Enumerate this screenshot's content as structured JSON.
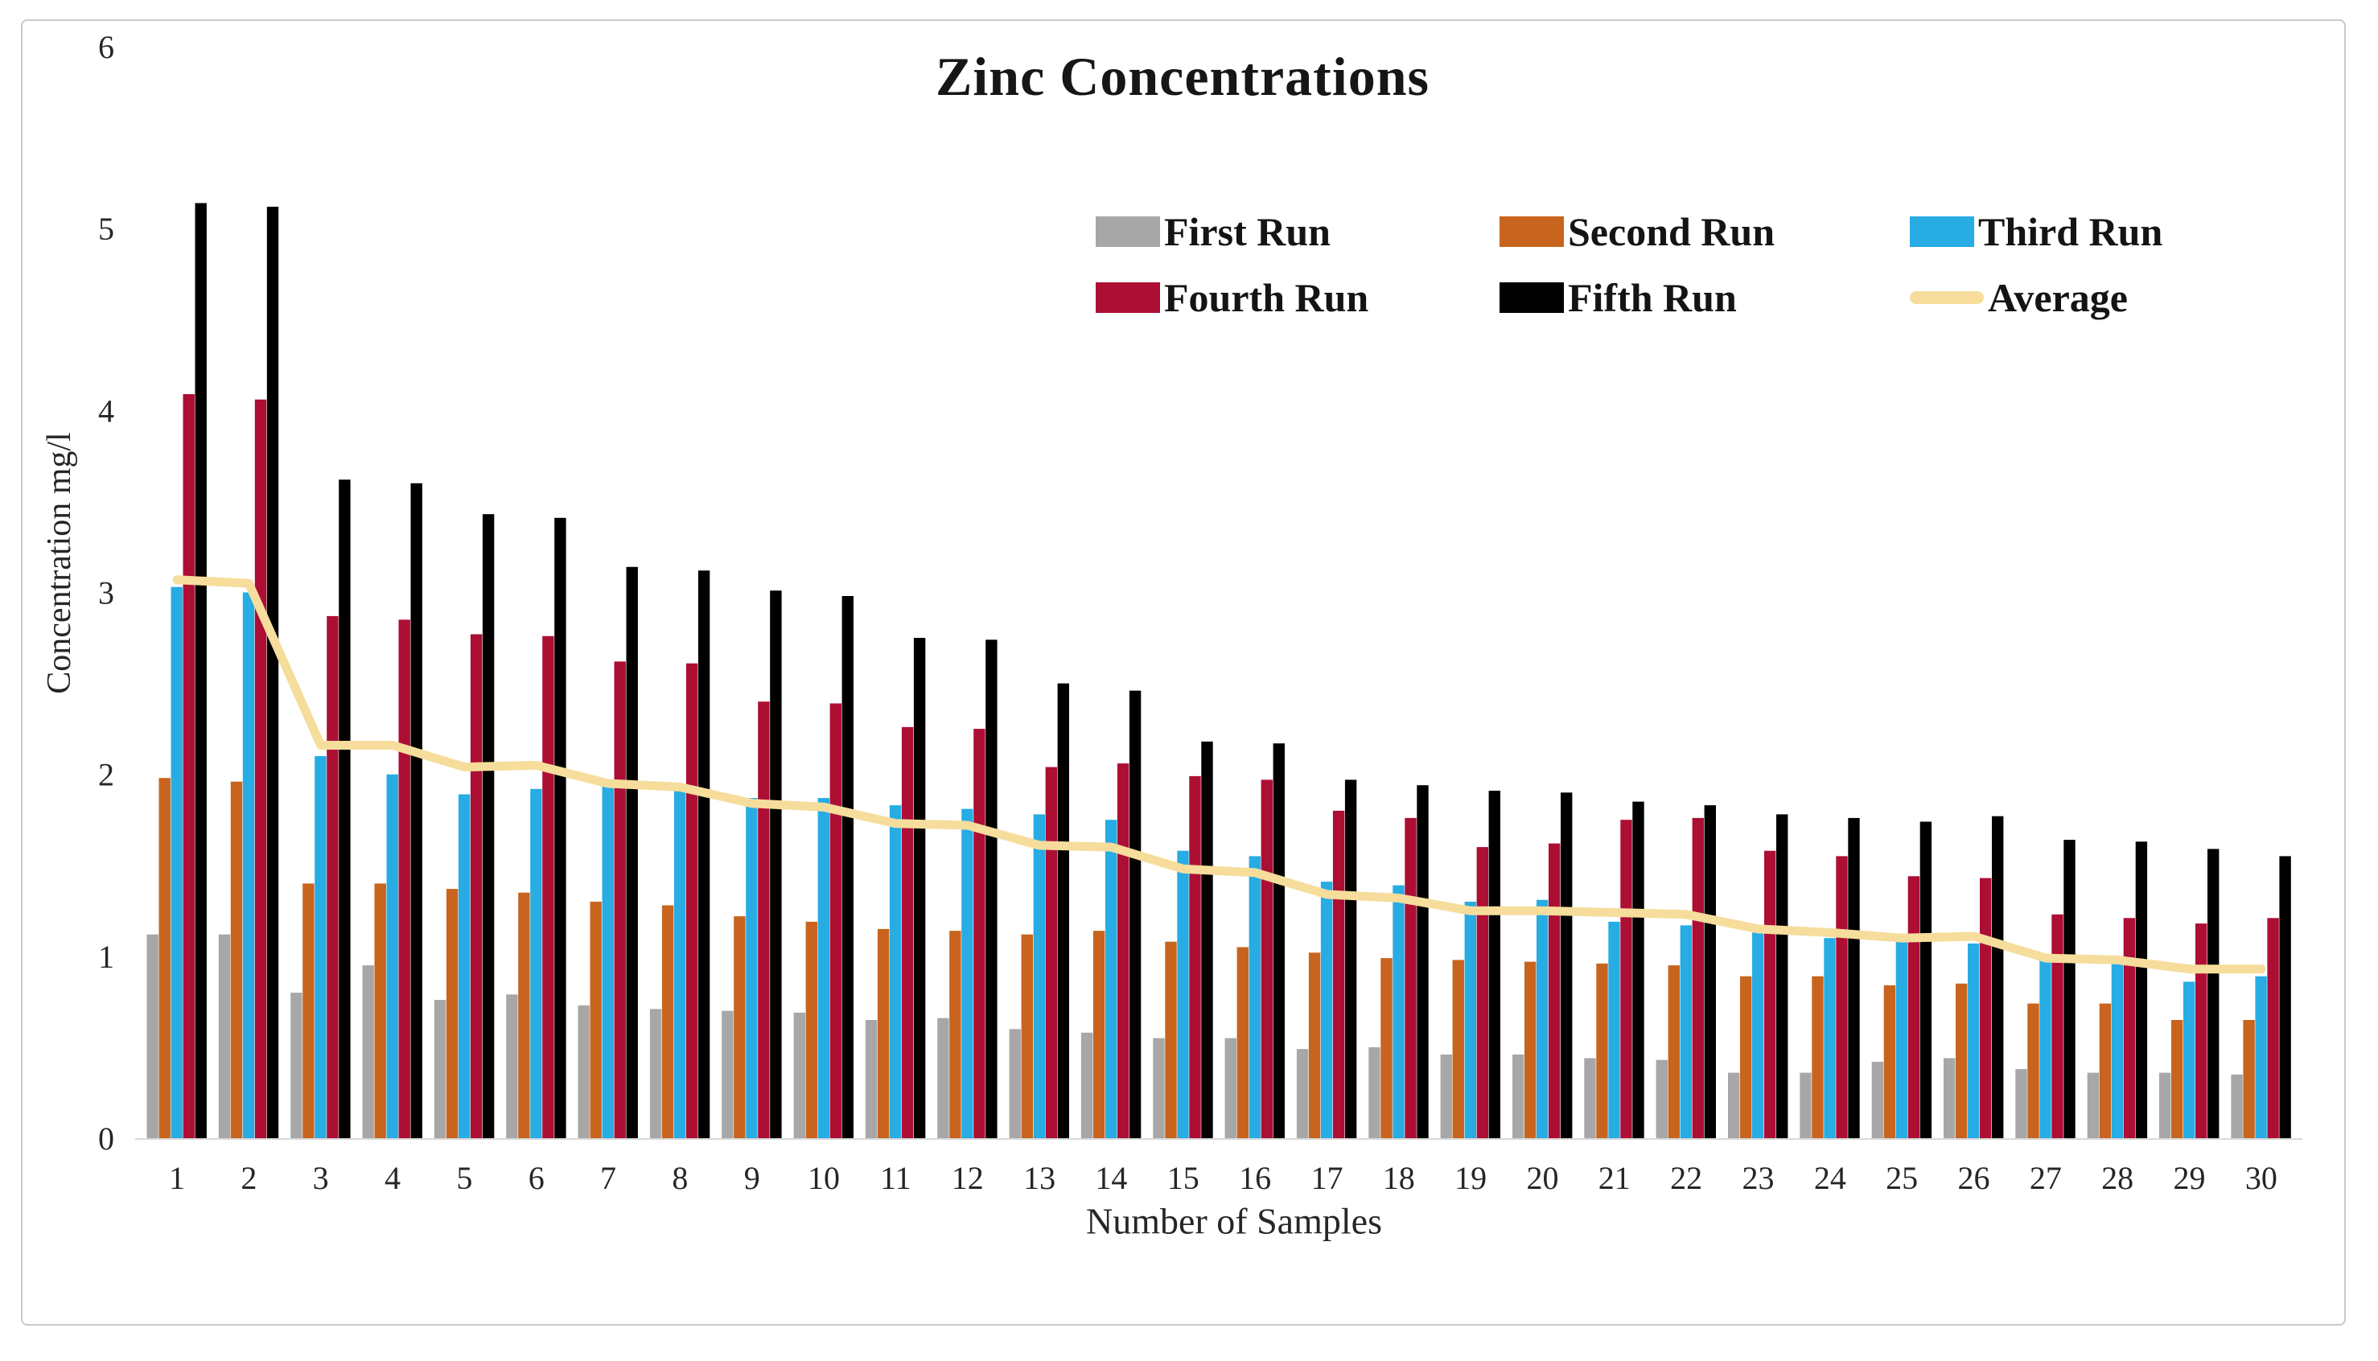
{
  "figure": {
    "title": "Zinc Concentrations",
    "border_color": "#c9c9c9",
    "background": "#ffffff"
  },
  "axes": {
    "y_title": "Concentration mg/l",
    "x_title": "Number of Samples",
    "tick_color": "#262626",
    "baseline_color": "#d9d9d9"
  },
  "legend": {
    "items": [
      {
        "label": "First Run",
        "color": "#a7a7a7",
        "swatch": "box"
      },
      {
        "label": "Second Run",
        "color": "#c8641e",
        "swatch": "box"
      },
      {
        "label": "Third Run",
        "color": "#27ace3",
        "swatch": "box"
      },
      {
        "label": "Fourth Run",
        "color": "#ad0e33",
        "swatch": "box"
      },
      {
        "label": "Fifth Run",
        "color": "#000000",
        "swatch": "box"
      },
      {
        "label": "Average",
        "color": "#f6dd9c",
        "swatch": "line"
      }
    ]
  },
  "chart_data": {
    "type": "bar",
    "subtype": "grouped-bars-with-average-line",
    "title": "Zinc Concentrations",
    "xlabel": "Number of Samples",
    "ylabel": "Concentration mg/l",
    "ylim": [
      0,
      6
    ],
    "y_ticks": [
      6,
      5,
      4,
      3,
      2,
      1,
      0
    ],
    "grid": false,
    "legend_position": "top-right-two-rows",
    "categories": [
      "1",
      "2",
      "3",
      "4",
      "5",
      "6",
      "7",
      "8",
      "9",
      "10",
      "11",
      "12",
      "13",
      "14",
      "15",
      "16",
      "17",
      "18",
      "19",
      "20",
      "21",
      "22",
      "23",
      "24",
      "25",
      "26",
      "27",
      "28",
      "29",
      "30"
    ],
    "series": [
      {
        "name": "First Run",
        "color": "#a7a7a7",
        "values": [
          1.12,
          1.12,
          0.8,
          0.95,
          0.76,
          0.79,
          0.73,
          0.71,
          0.7,
          0.69,
          0.65,
          0.66,
          0.6,
          0.58,
          0.55,
          0.55,
          0.49,
          0.5,
          0.46,
          0.46,
          0.44,
          0.43,
          0.36,
          0.36,
          0.42,
          0.44,
          0.38,
          0.36,
          0.36,
          0.35
        ]
      },
      {
        "name": "Second Run",
        "color": "#c8641e",
        "values": [
          1.98,
          1.96,
          1.4,
          1.4,
          1.37,
          1.35,
          1.3,
          1.28,
          1.22,
          1.19,
          1.15,
          1.14,
          1.12,
          1.14,
          1.08,
          1.05,
          1.02,
          0.99,
          0.98,
          0.97,
          0.96,
          0.95,
          0.89,
          0.89,
          0.84,
          0.85,
          0.74,
          0.74,
          0.65,
          0.65
        ]
      },
      {
        "name": "Third Run",
        "color": "#27ace3",
        "values": [
          3.03,
          3.0,
          2.1,
          2.0,
          1.89,
          1.92,
          1.94,
          1.93,
          1.87,
          1.87,
          1.83,
          1.81,
          1.78,
          1.75,
          1.58,
          1.55,
          1.41,
          1.39,
          1.3,
          1.31,
          1.19,
          1.17,
          1.13,
          1.1,
          1.08,
          1.07,
          0.98,
          0.96,
          0.86,
          0.89
        ]
      },
      {
        "name": "Fourth Run",
        "color": "#ad0e33",
        "values": [
          4.09,
          4.06,
          2.87,
          2.85,
          2.77,
          2.76,
          2.62,
          2.61,
          2.4,
          2.39,
          2.26,
          2.25,
          2.04,
          2.06,
          1.99,
          1.97,
          1.8,
          1.76,
          1.6,
          1.62,
          1.75,
          1.76,
          1.58,
          1.55,
          1.44,
          1.43,
          1.23,
          1.21,
          1.18,
          1.21
        ]
      },
      {
        "name": "Fifth Run",
        "color": "#000000",
        "values": [
          5.14,
          5.12,
          3.62,
          3.6,
          3.43,
          3.41,
          3.14,
          3.12,
          3.01,
          2.98,
          2.75,
          2.74,
          2.5,
          2.46,
          2.18,
          2.17,
          1.97,
          1.94,
          1.91,
          1.9,
          1.85,
          1.83,
          1.78,
          1.76,
          1.74,
          1.77,
          1.64,
          1.63,
          1.59,
          1.55
        ]
      }
    ],
    "average": {
      "name": "Average",
      "color": "#f6dd9c",
      "values": [
        3.07,
        3.05,
        2.16,
        2.16,
        2.04,
        2.05,
        1.95,
        1.93,
        1.84,
        1.82,
        1.73,
        1.72,
        1.61,
        1.6,
        1.48,
        1.46,
        1.34,
        1.32,
        1.25,
        1.25,
        1.24,
        1.23,
        1.15,
        1.13,
        1.1,
        1.11,
        0.99,
        0.98,
        0.93,
        0.93
      ]
    }
  }
}
